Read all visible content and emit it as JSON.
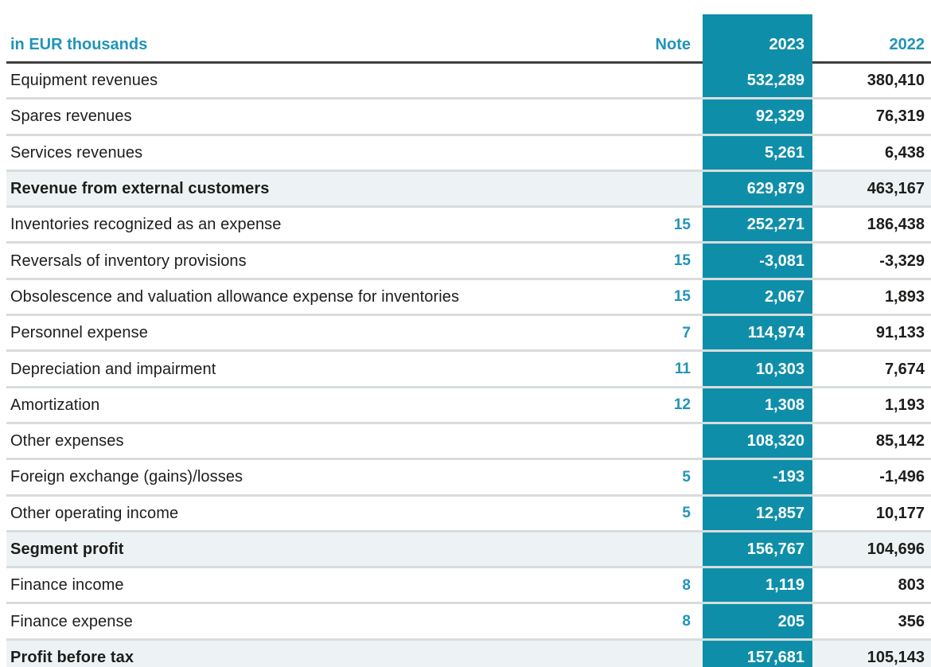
{
  "table": {
    "unit_label": "in EUR thousands",
    "columns": {
      "note": "Note",
      "y2023": "2023",
      "y2022": "2022"
    },
    "rows": [
      {
        "label": "Equipment revenues",
        "note": "",
        "y2023": "532,289",
        "y2022": "380,410",
        "emphasis": false
      },
      {
        "label": "Spares revenues",
        "note": "",
        "y2023": "92,329",
        "y2022": "76,319",
        "emphasis": false
      },
      {
        "label": "Services revenues",
        "note": "",
        "y2023": "5,261",
        "y2022": "6,438",
        "emphasis": false
      },
      {
        "label": "Revenue from external customers",
        "note": "",
        "y2023": "629,879",
        "y2022": "463,167",
        "emphasis": true
      },
      {
        "label": "Inventories recognized as an expense",
        "note": "15",
        "y2023": "252,271",
        "y2022": "186,438",
        "emphasis": false
      },
      {
        "label": "Reversals of inventory provisions",
        "note": "15",
        "y2023": "-3,081",
        "y2022": "-3,329",
        "emphasis": false
      },
      {
        "label": "Obsolescence and valuation allowance expense for inventories",
        "note": "15",
        "y2023": "2,067",
        "y2022": "1,893",
        "emphasis": false
      },
      {
        "label": "Personnel expense",
        "note": "7",
        "y2023": "114,974",
        "y2022": "91,133",
        "emphasis": false
      },
      {
        "label": "Depreciation and impairment",
        "note": "11",
        "y2023": "10,303",
        "y2022": "7,674",
        "emphasis": false
      },
      {
        "label": "Amortization",
        "note": "12",
        "y2023": "1,308",
        "y2022": "1,193",
        "emphasis": false
      },
      {
        "label": "Other expenses",
        "note": "",
        "y2023": "108,320",
        "y2022": "85,142",
        "emphasis": false
      },
      {
        "label": "Foreign exchange (gains)/losses",
        "note": "5",
        "y2023": "-193",
        "y2022": "-1,496",
        "emphasis": false
      },
      {
        "label": "Other operating income",
        "note": "5",
        "y2023": "12,857",
        "y2022": "10,177",
        "emphasis": false
      },
      {
        "label": "Segment profit",
        "note": "",
        "y2023": "156,767",
        "y2022": "104,696",
        "emphasis": true
      },
      {
        "label": "Finance income",
        "note": "8",
        "y2023": "1,119",
        "y2022": "803",
        "emphasis": false
      },
      {
        "label": "Finance expense",
        "note": "8",
        "y2023": "205",
        "y2022": "356",
        "emphasis": false
      },
      {
        "label": "Profit before tax",
        "note": "",
        "y2023": "157,681",
        "y2022": "105,143",
        "emphasis": true
      }
    ]
  },
  "colors": {
    "teal": "#0f8ea9",
    "tealText": "#2094b8",
    "tint": "#edf3f4",
    "sep": "#d8dcdd",
    "rule": "#3f3f3f",
    "ink": "#1d1d1b"
  }
}
